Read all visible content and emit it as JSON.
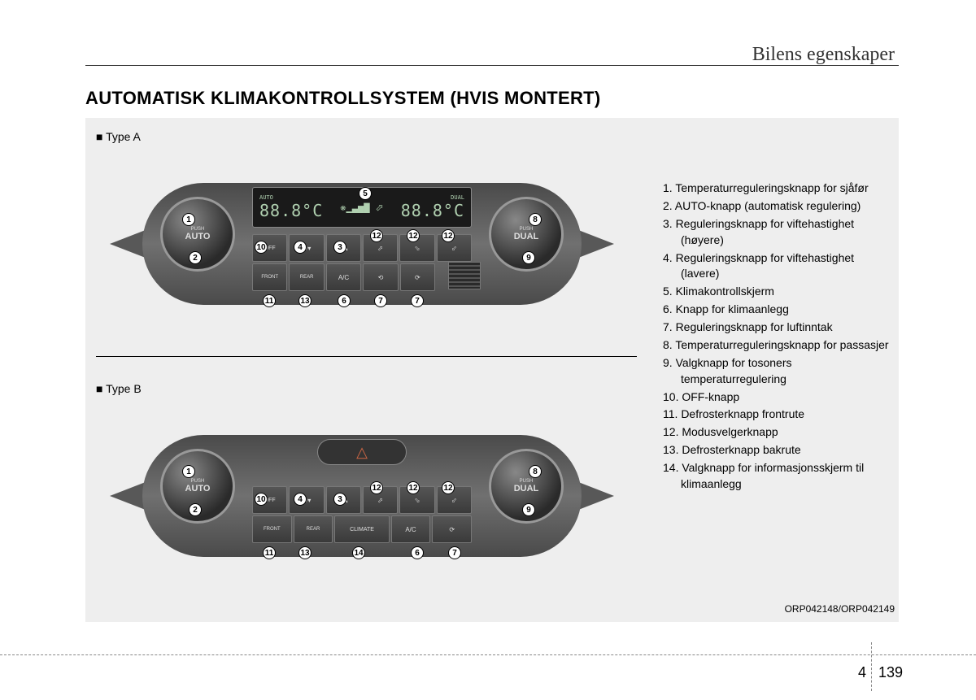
{
  "chapter_title": "Bilens egenskaper",
  "section_title": "AUTOMATISK KLIMAKONTROLLSYSTEM (HVIS MONTERT)",
  "type_a_label": "■ Type A",
  "type_b_label": "■ Type B",
  "dial_left": {
    "push": "PUSH",
    "mode": "AUTO"
  },
  "dial_right": {
    "push": "PUSH",
    "mode": "DUAL"
  },
  "display": {
    "auto": "AUTO",
    "dual": "DUAL",
    "temp_l": "88.8°C",
    "temp_r": "88.8°C"
  },
  "buttons_a_row2": [
    "FRONT",
    "REAR",
    "A/C",
    "⟲",
    "⟳"
  ],
  "buttons_b_row2": [
    "FRONT",
    "REAR",
    "CLIMATE",
    "A/C",
    "⟳"
  ],
  "off_label": "OFF",
  "legend": [
    "1. Temperaturreguleringsknapp for sjåfør",
    "2. AUTO-knapp (automatisk regulering)",
    "3. Reguleringsknapp for viftehastighet (høyere)",
    "4. Reguleringsknapp for viftehastighet (lavere)",
    "5. Klimakontrollskjerm",
    "6. Knapp for klimaanlegg",
    "7. Reguleringsknapp for luftinntak",
    "8. Temperaturreguleringsknapp for passasjer",
    "9. Valgknapp for tosoners temperaturregulering",
    "10. OFF-knapp",
    "11. Defrosterknapp frontrute",
    "12. Modusvelgerknapp",
    "13. Defrosterknapp bakrute",
    "14. Valgknapp for informasjonsskjerm til klimaanlegg"
  ],
  "image_ref": "ORP042148/ORP042149",
  "page_chapter": "4",
  "page_number": "139",
  "callouts_a": [
    {
      "n": "1",
      "t": 52,
      "l": 89
    },
    {
      "n": "2",
      "t": 99,
      "l": 97
    },
    {
      "n": "3",
      "t": 86,
      "l": 275
    },
    {
      "n": "4",
      "t": 86,
      "l": 226
    },
    {
      "n": "5",
      "t": 20,
      "l": 306
    },
    {
      "n": "6",
      "t": 152,
      "l": 280
    },
    {
      "n": "7",
      "t": 152,
      "l": 325
    },
    {
      "n": "7",
      "t": 152,
      "l": 370
    },
    {
      "n": "8",
      "t": 52,
      "l": 515
    },
    {
      "n": "9",
      "t": 99,
      "l": 507
    },
    {
      "n": "10",
      "t": 86,
      "l": 178
    },
    {
      "n": "11",
      "t": 152,
      "l": 188
    },
    {
      "n": "12",
      "t": 72,
      "l": 320
    },
    {
      "n": "12",
      "t": 72,
      "l": 365
    },
    {
      "n": "12",
      "t": 72,
      "l": 408
    },
    {
      "n": "13",
      "t": 152,
      "l": 232
    }
  ],
  "callouts_b": [
    {
      "n": "1",
      "t": 52,
      "l": 89
    },
    {
      "n": "2",
      "t": 99,
      "l": 97
    },
    {
      "n": "3",
      "t": 86,
      "l": 275
    },
    {
      "n": "4",
      "t": 86,
      "l": 226
    },
    {
      "n": "6",
      "t": 152,
      "l": 370
    },
    {
      "n": "7",
      "t": 152,
      "l": 416
    },
    {
      "n": "8",
      "t": 52,
      "l": 515
    },
    {
      "n": "9",
      "t": 99,
      "l": 507
    },
    {
      "n": "10",
      "t": 86,
      "l": 178
    },
    {
      "n": "11",
      "t": 152,
      "l": 188
    },
    {
      "n": "12",
      "t": 72,
      "l": 320
    },
    {
      "n": "12",
      "t": 72,
      "l": 365
    },
    {
      "n": "12",
      "t": 72,
      "l": 408
    },
    {
      "n": "13",
      "t": 152,
      "l": 232
    },
    {
      "n": "14",
      "t": 152,
      "l": 298
    }
  ]
}
